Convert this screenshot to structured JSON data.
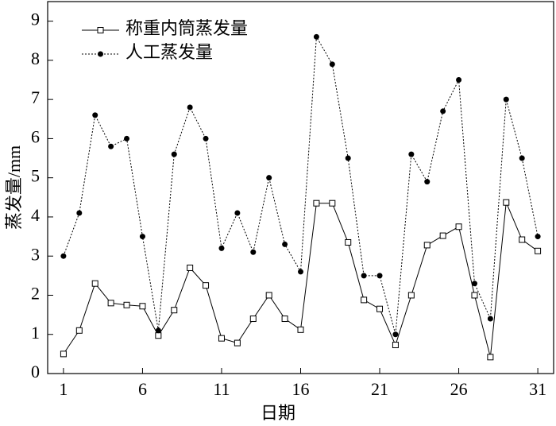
{
  "chart_data": {
    "type": "line",
    "x_label": "日期",
    "y_label": "蒸发量/mm",
    "x": [
      1,
      2,
      3,
      4,
      5,
      6,
      7,
      8,
      9,
      10,
      11,
      12,
      13,
      14,
      15,
      16,
      17,
      18,
      19,
      20,
      21,
      22,
      23,
      24,
      25,
      26,
      27,
      28,
      29,
      30,
      31
    ],
    "series": [
      {
        "name": "称重内筒蒸发量",
        "color": "#000000",
        "marker": "square",
        "dash": "solid",
        "values": [
          0.5,
          1.1,
          2.3,
          1.8,
          1.75,
          1.72,
          0.97,
          1.62,
          2.7,
          2.25,
          0.9,
          0.78,
          1.4,
          2.0,
          1.4,
          1.12,
          4.35,
          4.35,
          3.35,
          1.88,
          1.65,
          0.73,
          2.0,
          3.28,
          3.52,
          3.75,
          2.0,
          0.42,
          4.37,
          3.42,
          3.13
        ]
      },
      {
        "name": "人工蒸发量",
        "color": "#000000",
        "marker": "circle",
        "dash": "dotted",
        "values": [
          3.0,
          4.1,
          6.6,
          5.8,
          6.0,
          3.5,
          1.1,
          5.6,
          6.8,
          6.0,
          3.2,
          4.1,
          3.1,
          5.0,
          3.3,
          2.6,
          8.6,
          7.9,
          5.5,
          2.5,
          2.5,
          1.0,
          5.6,
          4.9,
          6.7,
          7.5,
          2.3,
          1.4,
          7.0,
          5.5,
          3.5
        ]
      }
    ],
    "xlim": [
      0,
      32
    ],
    "xticks": [
      1,
      6,
      11,
      16,
      21,
      26,
      31
    ],
    "ylim": [
      0,
      9.5
    ],
    "yticks": [
      0,
      1,
      2,
      3,
      4,
      5,
      6,
      7,
      8,
      9
    ],
    "legend": "upper-left"
  }
}
